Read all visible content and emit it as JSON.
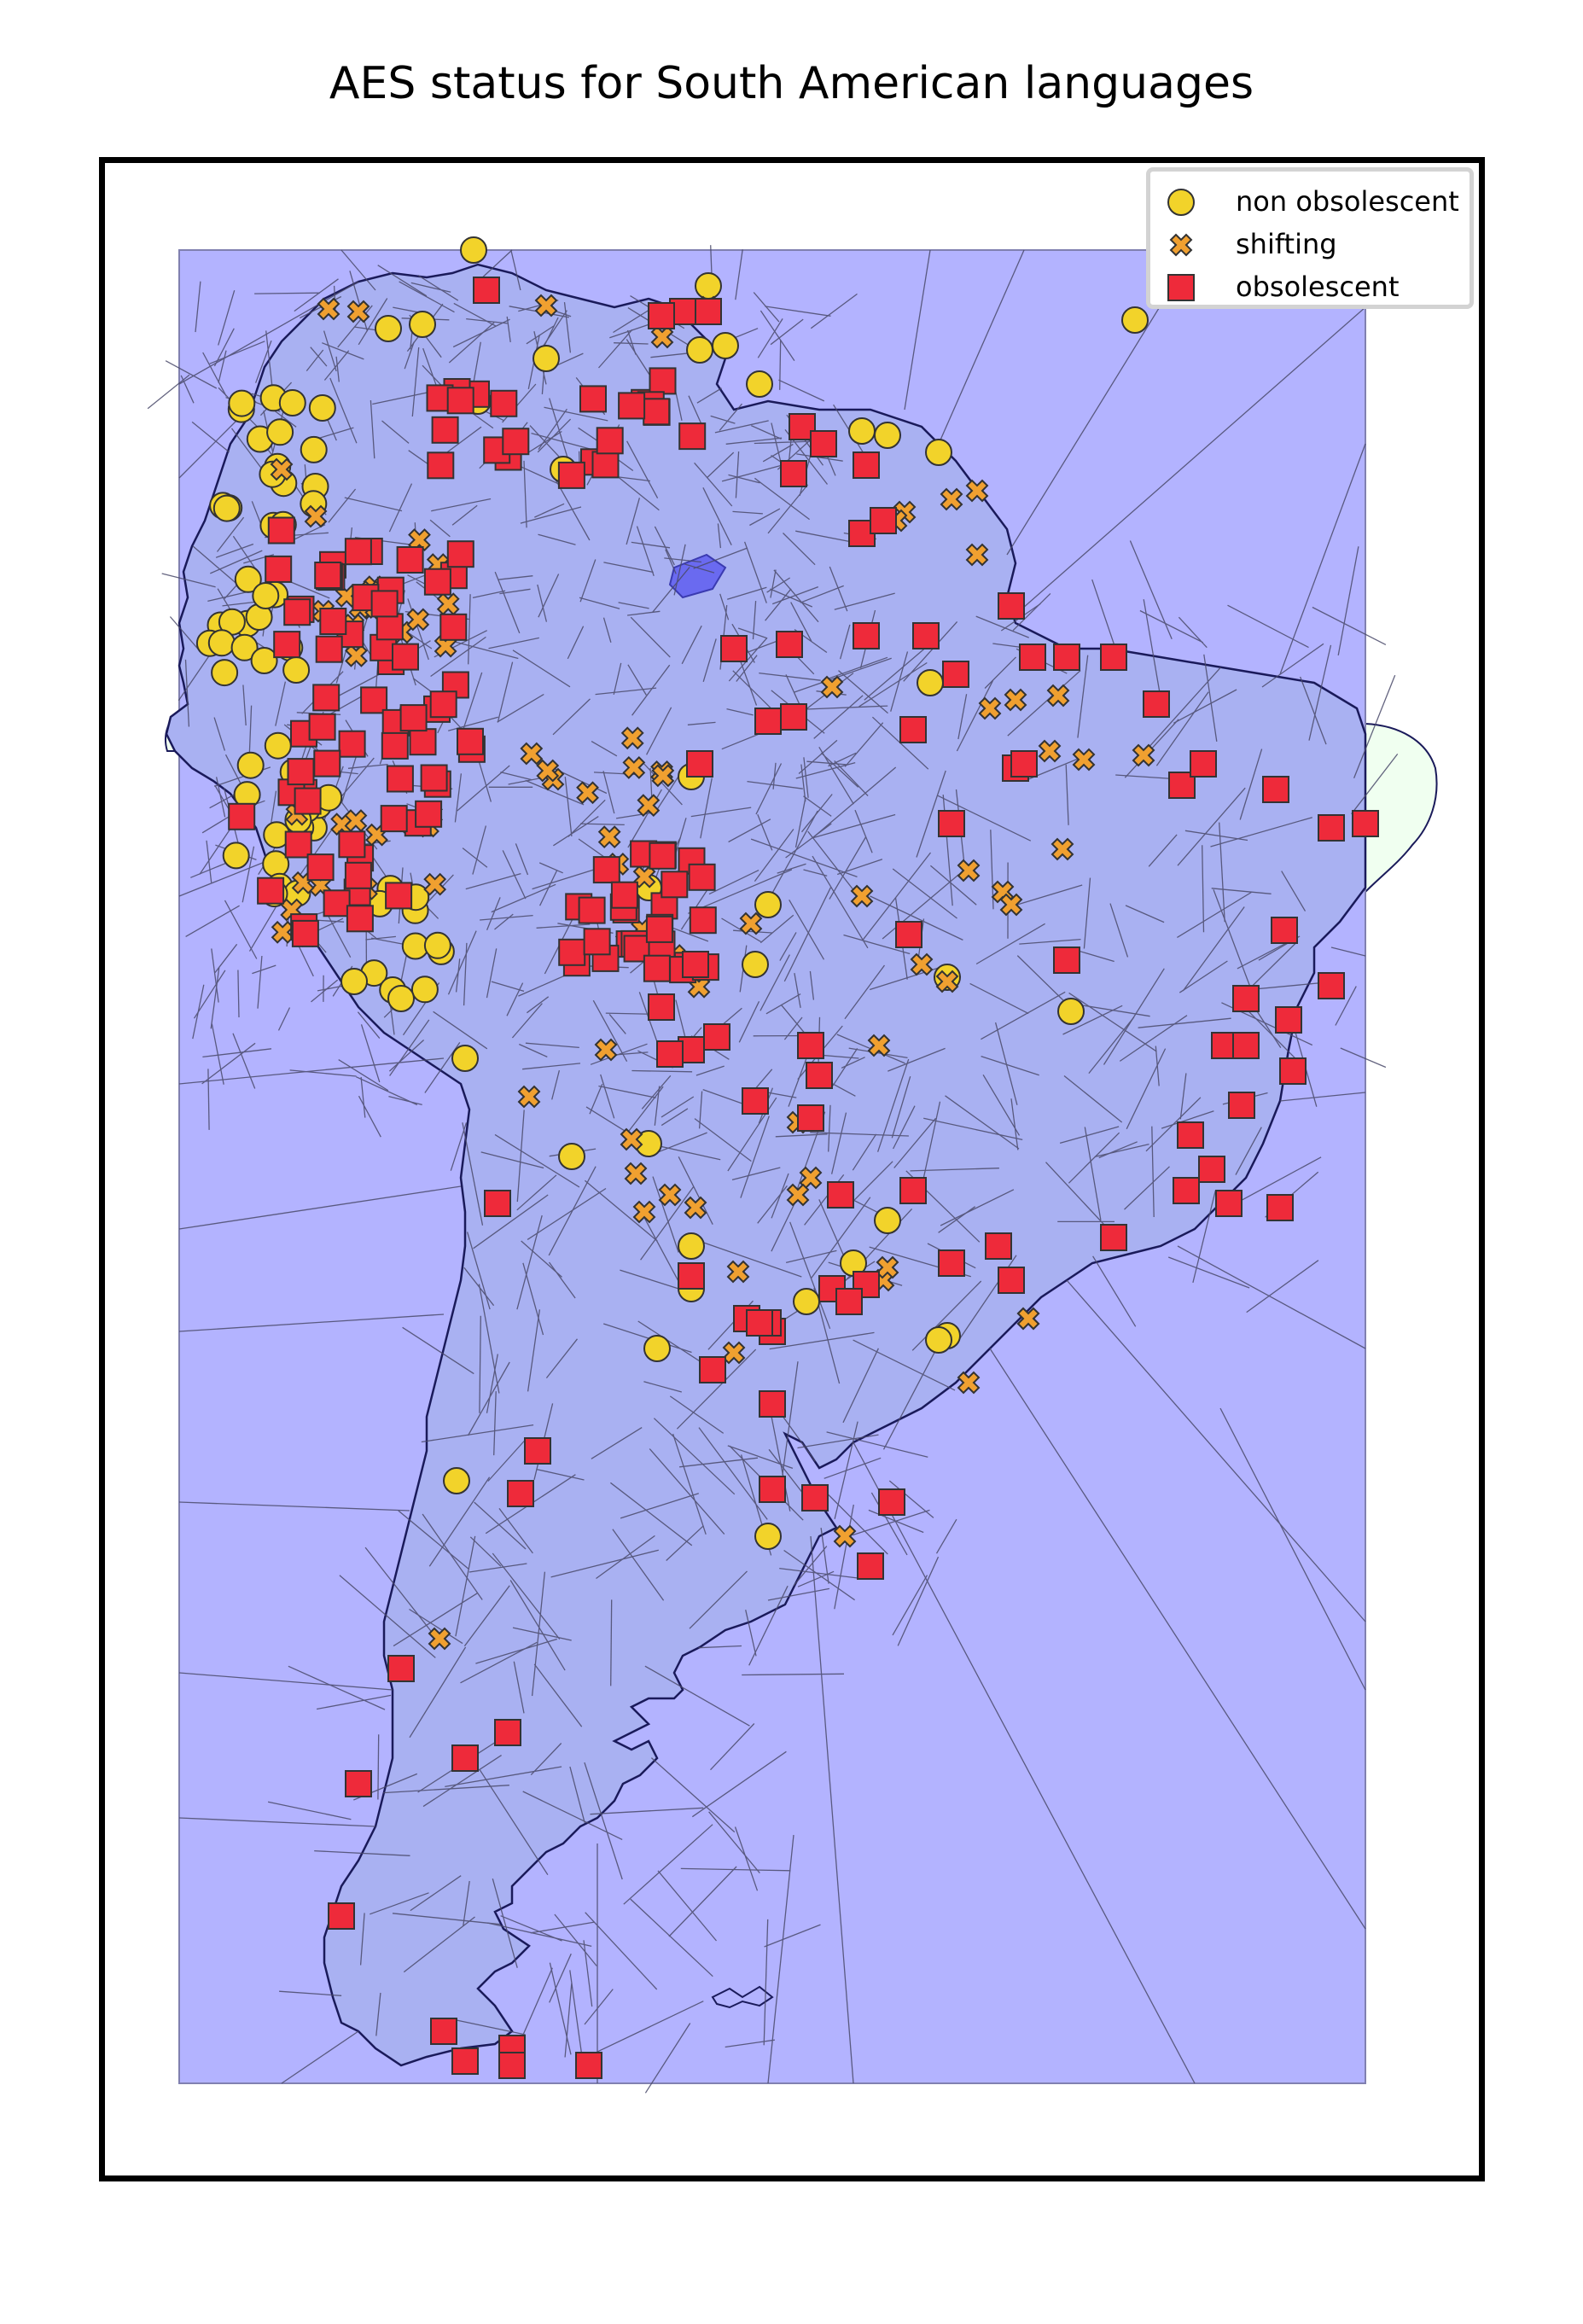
{
  "title": "AES status for South American languages",
  "legend": {
    "items": [
      {
        "label": "non obsolescent",
        "marker": "circle-icon",
        "color": "#f2d32a"
      },
      {
        "label": "shifting",
        "marker": "x-icon",
        "color": "#f0a030"
      },
      {
        "label": "obsolescent",
        "marker": "square-icon",
        "color": "#ee2a3a"
      }
    ],
    "placement": "upper right"
  },
  "colors": {
    "ocean": "#b3b3ff",
    "land": "#a9b1f2",
    "cell_lines": "#4a4a6a",
    "coastline": "#1a1a5a",
    "outside_land": "#f0fff0",
    "highlight_cell": "#6a6af0"
  }
}
